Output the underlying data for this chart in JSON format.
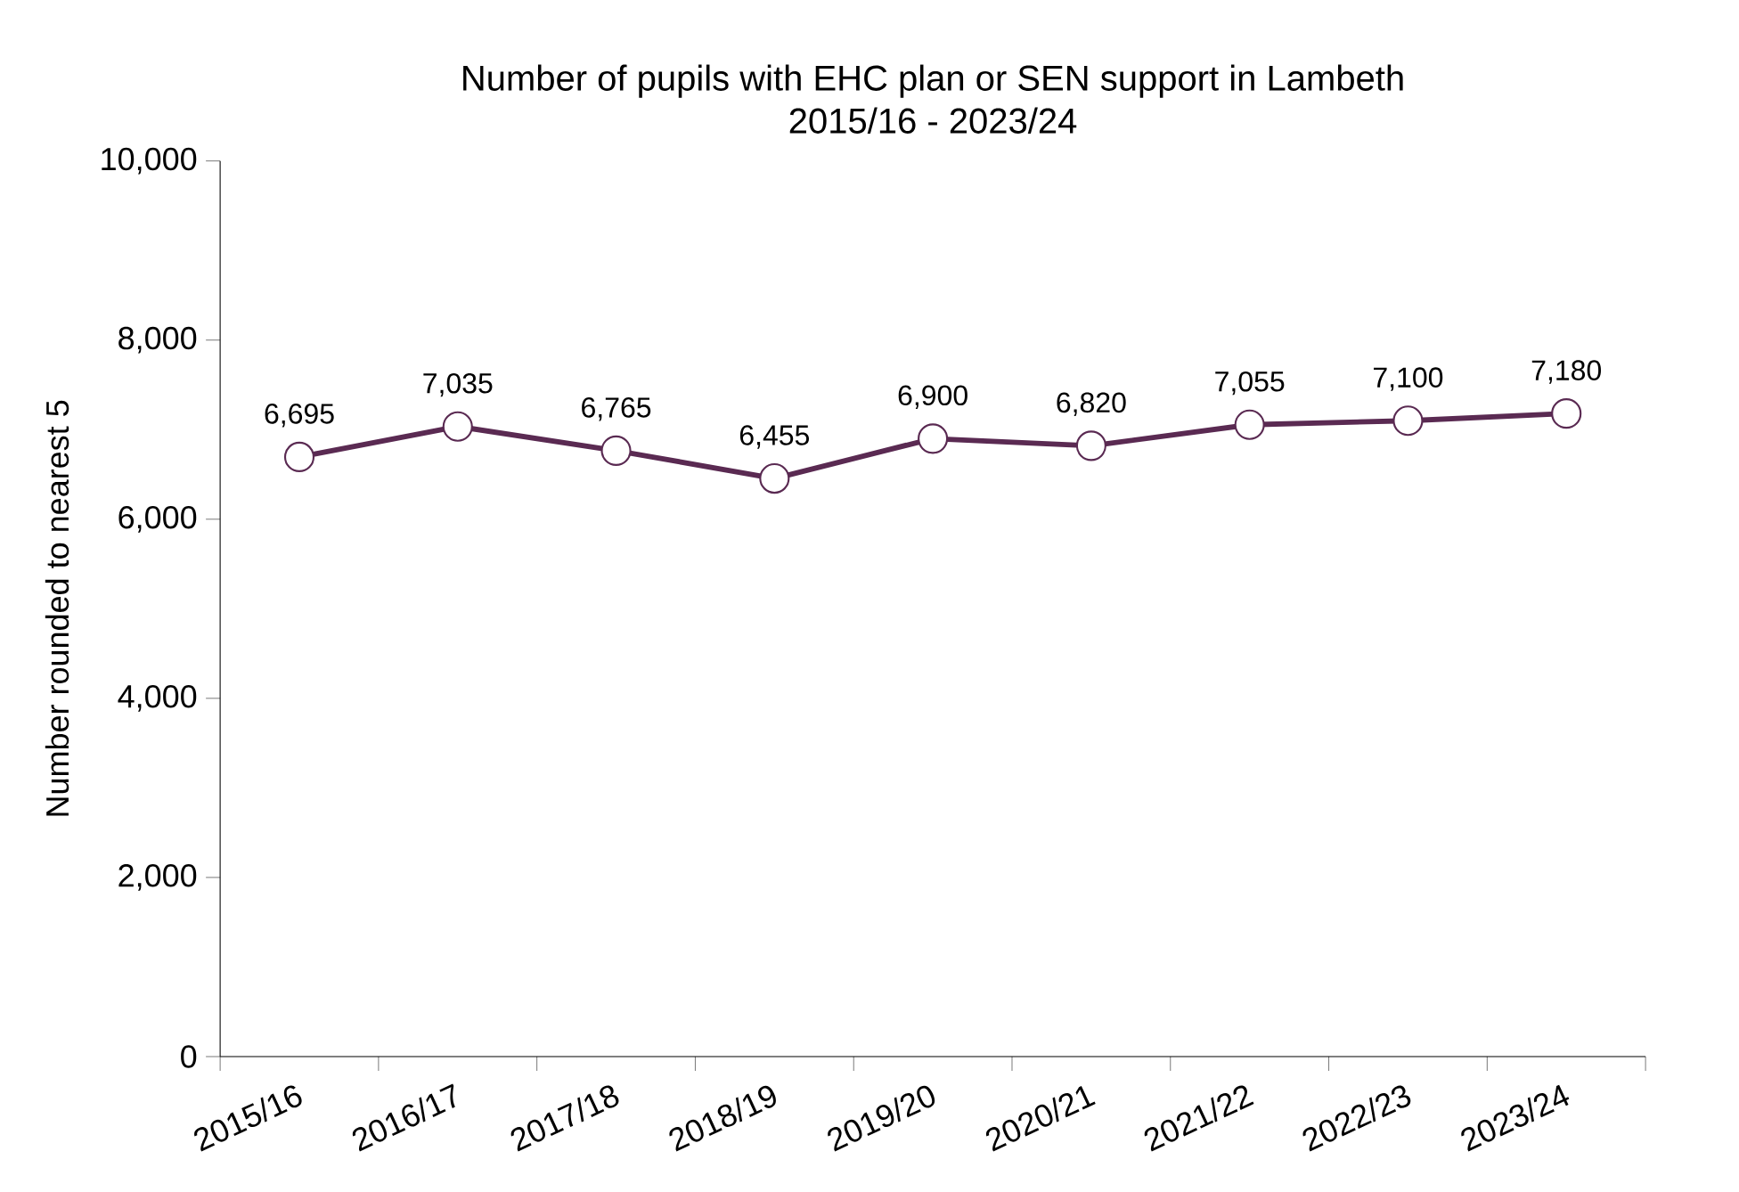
{
  "chart_data": {
    "type": "line",
    "title": "Number of pupils with EHC plan or SEN support in Lambeth",
    "subtitle": "2015/16 - 2023/24",
    "ylabel": "Number rounded to nearest 5",
    "categories": [
      "2015/16",
      "2016/17",
      "2017/18",
      "2018/19",
      "2019/20",
      "2020/21",
      "2021/22",
      "2022/23",
      "2023/24"
    ],
    "values": [
      6695,
      7035,
      6765,
      6455,
      6900,
      6820,
      7055,
      7100,
      7180
    ],
    "value_labels": [
      "6,695",
      "7,035",
      "6,765",
      "6,455",
      "6,900",
      "6,820",
      "7,055",
      "7,100",
      "7,180"
    ],
    "color": "#5a2a52",
    "marker": "circle",
    "line_style": "solid",
    "grid": false,
    "ylim": [
      0,
      10000
    ],
    "yticks": [
      0,
      {
        "value": 2000,
        "label": "2,000"
      },
      {
        "value": 4000,
        "label": "4,000"
      },
      {
        "value": 6000,
        "label": "6,000"
      },
      {
        "value": 8000,
        "label": "8,000"
      },
      {
        "value": 10000,
        "label": "10,000"
      }
    ]
  }
}
